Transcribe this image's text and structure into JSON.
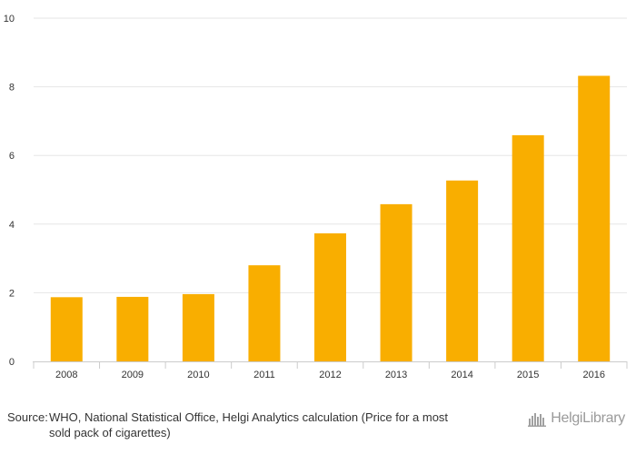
{
  "chart_data": {
    "type": "bar",
    "categories": [
      "2008",
      "2009",
      "2010",
      "2011",
      "2012",
      "2013",
      "2014",
      "2015",
      "2016"
    ],
    "values": [
      1.87,
      1.88,
      1.96,
      2.8,
      3.73,
      4.58,
      5.27,
      6.59,
      8.32
    ],
    "ylim": [
      0,
      10
    ],
    "yticks": [
      "0",
      "2",
      "4",
      "6",
      "8",
      "10"
    ],
    "grid": true,
    "title": "",
    "xlabel": "",
    "ylabel": "",
    "bar_color": "#f9ae00",
    "grid_color": "#e6e6e6"
  },
  "footer": {
    "source_label": "Source:",
    "source_text": "WHO, National Statistical Office, Helgi Analytics calculation (Price for a most sold pack of cigarettes)",
    "logo_text": "HelgiLibrary"
  }
}
